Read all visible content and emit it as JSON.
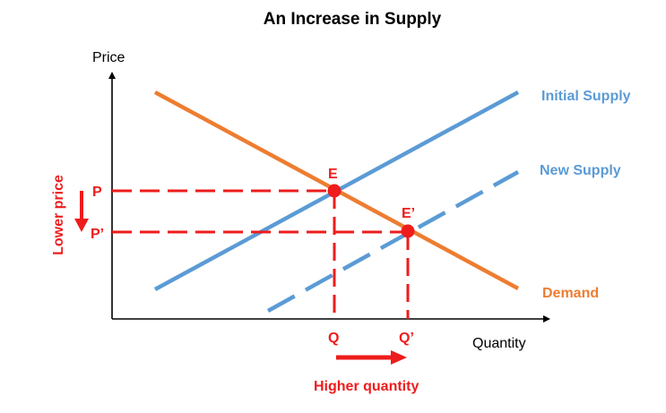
{
  "title": "An Increase in Supply",
  "axes": {
    "y_label": "Price",
    "x_label": "Quantity"
  },
  "curves": {
    "initial_supply": {
      "label": "Initial Supply",
      "color": "#5b9bd5",
      "style": "solid"
    },
    "new_supply": {
      "label": "New Supply",
      "color": "#5b9bd5",
      "style": "dashed"
    },
    "demand": {
      "label": "Demand",
      "color": "#ed7d31",
      "style": "solid"
    }
  },
  "equilibria": {
    "initial": {
      "label": "E",
      "price_label": "P",
      "quantity_label": "Q"
    },
    "new": {
      "label": "E’",
      "price_label": "P’",
      "quantity_label": "Q’"
    }
  },
  "annotations": {
    "price_change": "Lower price",
    "quantity_change": "Higher quantity"
  },
  "colors": {
    "highlight": "#ee1c1c",
    "axis": "#000000"
  }
}
